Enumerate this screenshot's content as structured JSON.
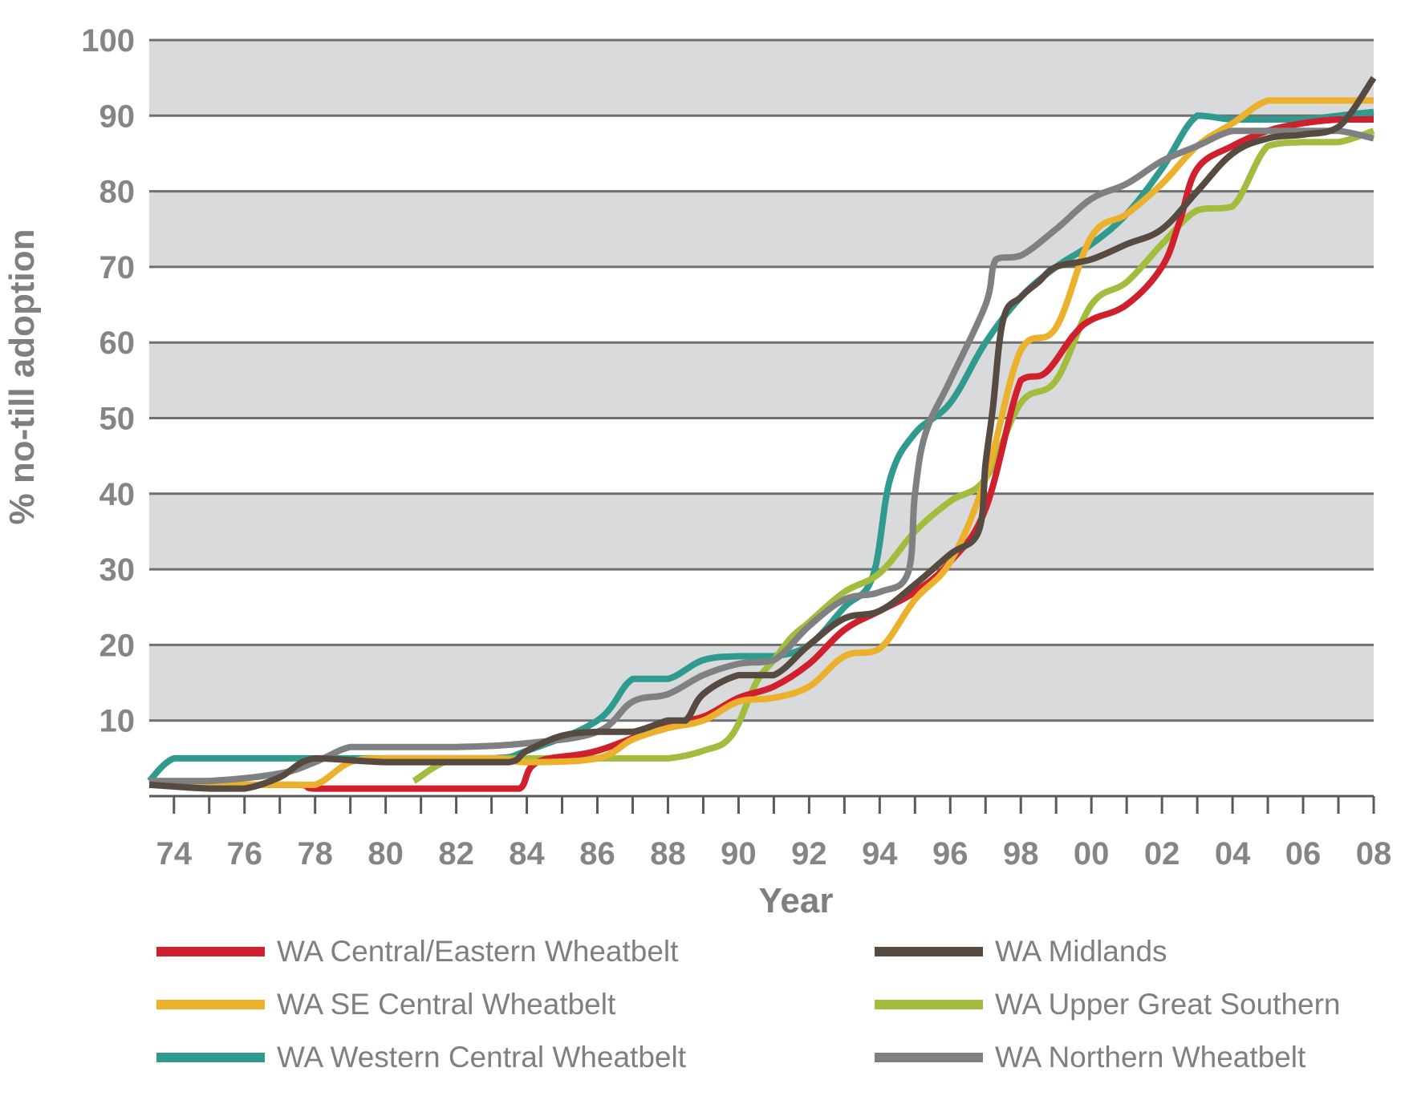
{
  "chart_data": {
    "type": "line",
    "title": "",
    "xlabel": "Year",
    "ylabel": "% no-till adoption",
    "ylim": [
      0,
      100
    ],
    "xlim": [
      1973.3,
      2008
    ],
    "y_ticks": [
      "10",
      "20",
      "30",
      "40",
      "50",
      "60",
      "70",
      "80",
      "90",
      "100"
    ],
    "y_tick_values": [
      10,
      20,
      30,
      40,
      50,
      60,
      70,
      80,
      90,
      100
    ],
    "x_ticks": [
      "74",
      "76",
      "78",
      "80",
      "82",
      "84",
      "86",
      "88",
      "90",
      "92",
      "94",
      "96",
      "98",
      "00",
      "02",
      "04",
      "06",
      "08"
    ],
    "x_tick_values": [
      1974,
      1976,
      1978,
      1980,
      1982,
      1984,
      1986,
      1988,
      1990,
      1992,
      1994,
      1996,
      1998,
      2000,
      2002,
      2004,
      2006,
      2008
    ],
    "grid": "horizontal, alternating grey bands",
    "legend_position": "bottom",
    "colors": {
      "band": "#d9dadc",
      "gridline": "#6f6f6f",
      "axis": "#595959"
    },
    "series": [
      {
        "name": "WA Central/Eastern Wheatbelt",
        "color": "#d0202e",
        "x": [
          1973.3,
          1975,
          1977.5,
          1978,
          1980,
          1983,
          1983.8,
          1984.3,
          1986,
          1988,
          1989,
          1990,
          1991,
          1992,
          1993,
          1994,
          1995,
          1996,
          1997,
          1998,
          1998.7,
          1999.5,
          2000,
          2001,
          2002,
          2002.5,
          2003,
          2004,
          2005,
          2006,
          2007,
          2008
        ],
        "y": [
          1.5,
          1.5,
          1.5,
          1,
          1,
          1,
          1,
          4.5,
          6,
          9.5,
          10.5,
          13,
          14.5,
          17.5,
          22,
          24.5,
          27,
          31,
          38,
          55,
          56,
          61,
          63,
          65,
          70,
          76,
          83,
          86,
          88,
          89,
          89.5,
          89.5
        ]
      },
      {
        "name": "WA SE Central Wheatbelt",
        "color": "#ebb12c",
        "x": [
          1973.3,
          1975,
          1977,
          1978,
          1979,
          1980,
          1983,
          1984,
          1986,
          1987,
          1988,
          1989,
          1990,
          1991,
          1992,
          1993,
          1994,
          1995,
          1996,
          1997,
          1998,
          1999,
          2000,
          2001,
          2002,
          2003,
          2004,
          2005,
          2006,
          2007,
          2008
        ],
        "y": [
          2,
          1.5,
          1.5,
          1.5,
          4.5,
          5,
          5,
          4.5,
          5,
          7.5,
          9,
          10,
          12.5,
          13,
          14.5,
          18.5,
          19.5,
          26,
          31,
          42,
          59,
          62,
          74,
          77,
          81,
          86,
          89,
          92,
          92,
          92,
          92
        ]
      },
      {
        "name": "WA Western Central Wheatbelt",
        "color": "#2f9b8f",
        "x": [
          1973.3,
          1974,
          1975,
          1977,
          1978,
          1980,
          1983,
          1984,
          1986,
          1987,
          1988,
          1989,
          1990,
          1991,
          1992,
          1993,
          1993.8,
          1994.3,
          1995,
          1996,
          1997,
          1998,
          1999,
          2000,
          2001,
          2002,
          2003,
          2004,
          2005,
          2006,
          2007,
          2008
        ],
        "y": [
          2,
          5,
          5,
          5,
          5,
          5,
          5,
          6,
          10,
          15.5,
          15.5,
          18,
          18.5,
          18.5,
          20,
          25,
          29,
          42,
          48,
          52,
          60,
          66,
          70,
          73,
          77,
          83,
          90,
          89.5,
          89.5,
          89.5,
          90,
          90.5
        ]
      },
      {
        "name": "WA Midlands",
        "color": "#574a40",
        "x": [
          1973.3,
          1975,
          1976,
          1977,
          1978,
          1980,
          1982,
          1983.5,
          1984,
          1985,
          1986,
          1987,
          1988,
          1988.5,
          1989,
          1990,
          1991,
          1992,
          1993,
          1994,
          1995,
          1996,
          1996.8,
          1997,
          1997.2,
          1997.5,
          1998,
          1998.5,
          1999,
          2000,
          2001,
          2002,
          2003,
          2004,
          2005,
          2006,
          2007,
          2008
        ],
        "y": [
          1.5,
          1,
          1,
          2.5,
          5,
          4.5,
          4.5,
          4.5,
          6,
          8,
          8.5,
          8.5,
          10,
          10,
          13.5,
          16,
          16,
          20,
          23.5,
          24.5,
          28,
          32,
          35,
          44,
          51,
          63,
          66,
          68,
          70,
          71,
          73,
          75,
          80,
          85,
          87,
          87.5,
          88.5,
          95
        ]
      },
      {
        "name": "WA Upper Great Southern",
        "color": "#a2bd3d",
        "x": [
          1980.8,
          1982,
          1984,
          1986,
          1987,
          1988,
          1989,
          1989.8,
          1990.5,
          1991,
          1991.5,
          1992,
          1993,
          1994,
          1995,
          1996,
          1997,
          1998,
          1999,
          2000,
          2001,
          2002,
          2003,
          2004,
          2005,
          2006,
          2007,
          2008
        ],
        "y": [
          2,
          5,
          5,
          5,
          5,
          5,
          6,
          8,
          15,
          18,
          21,
          23,
          27,
          29.5,
          35,
          39,
          42,
          52,
          55,
          65,
          68,
          73,
          77.5,
          78,
          86,
          86.5,
          86.5,
          88
        ]
      },
      {
        "name": "WA Northern Wheatbelt",
        "color": "#7e8082",
        "x": [
          1973.3,
          1975,
          1977,
          1978,
          1979,
          1980,
          1982,
          1984,
          1986,
          1987,
          1988,
          1989,
          1990,
          1991,
          1992,
          1993,
          1994,
          1994.8,
          1995,
          1995.3,
          1996,
          1997,
          1997.3,
          1998,
          1999,
          2000,
          2001,
          2002,
          2003,
          2004,
          2005,
          2006,
          2007,
          2008
        ],
        "y": [
          2,
          2,
          3,
          4.5,
          6.5,
          6.5,
          6.5,
          7,
          8.5,
          12.5,
          13.5,
          16,
          17.5,
          18,
          22.5,
          26,
          27,
          29.5,
          40,
          48,
          55,
          65,
          71,
          71.5,
          75,
          79,
          81,
          84,
          86,
          88,
          88,
          88,
          88,
          87
        ]
      }
    ]
  }
}
